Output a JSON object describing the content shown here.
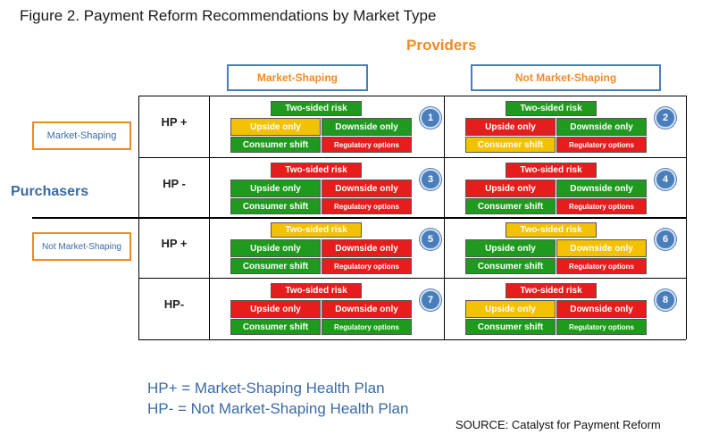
{
  "title": "Figure 2. Payment Reform Recommendations by Market Type",
  "providers_label": "Providers",
  "purchasers_label": "Purchasers",
  "columns": [
    "Market-Shaping",
    "Not Market-Shaping"
  ],
  "row_groups": [
    "Market-Shaping",
    "Not Market-Shaping"
  ],
  "block_labels": {
    "two_sided": "Two-sided risk",
    "upside": "Upside only",
    "downside": "Downside only",
    "consumer": "Consumer shift",
    "regulatory": "Regulatory options"
  },
  "colors": {
    "green": "#1f9a1f",
    "red": "#e71d1d",
    "yellow": "#f2c200",
    "badge": "#4a7ebb",
    "accent": "#f08a24"
  },
  "rows": [
    {
      "hp": "HP +",
      "cells": [
        {
          "num": "1",
          "two_sided": "green",
          "upside": "yellow",
          "downside": "green",
          "consumer": "green",
          "regulatory": "red"
        },
        {
          "num": "2",
          "two_sided": "green",
          "upside": "red",
          "downside": "green",
          "consumer": "yellow",
          "regulatory": "red"
        }
      ]
    },
    {
      "hp": "HP -",
      "cells": [
        {
          "num": "3",
          "two_sided": "red",
          "upside": "green",
          "downside": "red",
          "consumer": "green",
          "regulatory": "red"
        },
        {
          "num": "4",
          "two_sided": "red",
          "upside": "red",
          "downside": "green",
          "consumer": "green",
          "regulatory": "red"
        }
      ]
    },
    {
      "hp": "HP +",
      "cells": [
        {
          "num": "5",
          "two_sided": "yellow",
          "upside": "green",
          "downside": "red",
          "consumer": "green",
          "regulatory": "red"
        },
        {
          "num": "6",
          "two_sided": "yellow",
          "upside": "green",
          "downside": "yellow",
          "consumer": "green",
          "regulatory": "red"
        }
      ]
    },
    {
      "hp": "HP-",
      "cells": [
        {
          "num": "7",
          "two_sided": "red",
          "upside": "red",
          "downside": "red",
          "consumer": "green",
          "regulatory": "green"
        },
        {
          "num": "8",
          "two_sided": "red",
          "upside": "yellow",
          "downside": "red",
          "consumer": "green",
          "regulatory": "green"
        }
      ]
    }
  ],
  "legend": [
    "HP+ = Market-Shaping Health Plan",
    "HP- = Not Market-Shaping Health Plan"
  ],
  "source": "SOURCE: Catalyst for Payment Reform"
}
